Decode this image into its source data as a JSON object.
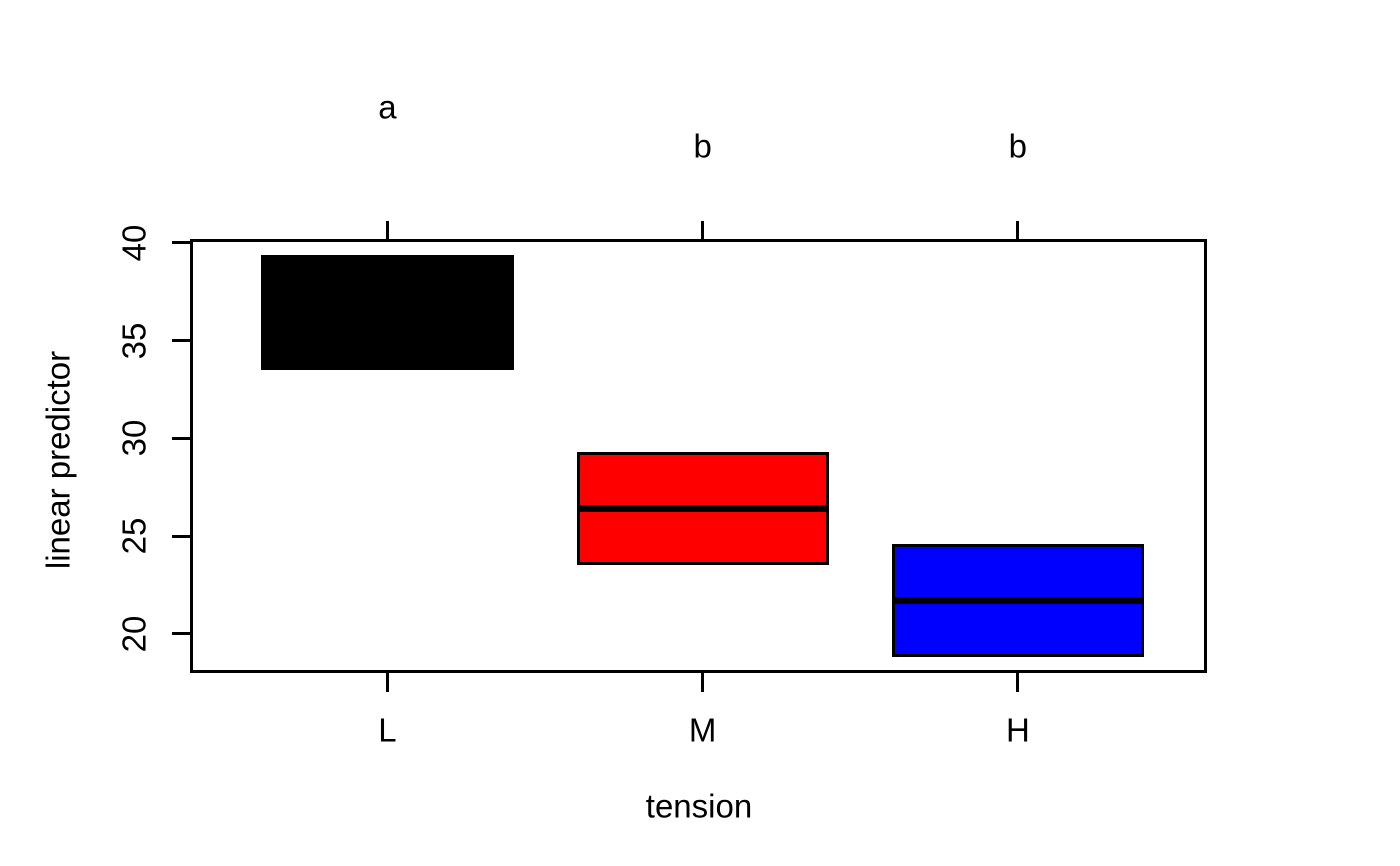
{
  "chart_data": {
    "type": "ci-box",
    "title": "",
    "xlabel": "tension",
    "ylabel": "linear predictor",
    "categories": [
      "L",
      "M",
      "H"
    ],
    "series": [
      {
        "category": "L",
        "lower": 33.5,
        "upper": 39.4,
        "estimate": 36.4,
        "color": "#000000",
        "cld_letter": "a"
      },
      {
        "category": "M",
        "lower": 23.5,
        "upper": 29.3,
        "estimate": 26.4,
        "color": "#ff0000",
        "cld_letter": "b"
      },
      {
        "category": "H",
        "lower": 18.8,
        "upper": 24.6,
        "estimate": 21.7,
        "color": "#0000ff",
        "cld_letter": "b"
      }
    ],
    "y_ticks": [
      20,
      25,
      30,
      35,
      40
    ],
    "ylim": [
      18.05,
      40.1
    ],
    "xlim": [
      0.38,
      3.6
    ],
    "box_halfwidth": 0.4,
    "axis_color": "#000000",
    "background": "#ffffff",
    "grid": false,
    "legend": false
  }
}
